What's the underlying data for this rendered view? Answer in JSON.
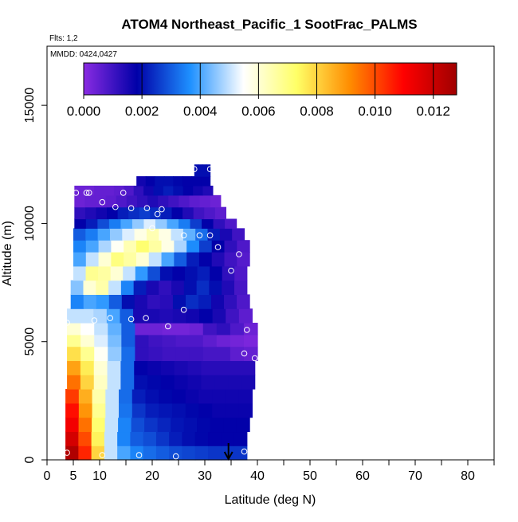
{
  "chart_data": {
    "type": "heatmap",
    "title": "ATOM4 Northeast_Pacific_1 SootFrac_PALMS",
    "annotations": {
      "flights": "Flts: 1,2",
      "dates": "MMDD: 0424,0427"
    },
    "xlabel": "Latitude (deg N)",
    "ylabel": "Altitude (m)",
    "xlim": [
      0,
      85
    ],
    "ylim": [
      0,
      17500
    ],
    "xticks": [
      0,
      5,
      10,
      20,
      30,
      40,
      50,
      60,
      70,
      80
    ],
    "xtick_labels": [
      "0",
      "5",
      "10",
      "20",
      "30",
      "40",
      "50",
      "60",
      "70",
      "80"
    ],
    "xminor_ticks": [
      15,
      25,
      35,
      45,
      55,
      65,
      75,
      85
    ],
    "yticks": [
      0,
      5000,
      10000,
      15000
    ],
    "ytick_labels": [
      "0",
      "5000",
      "10000",
      "15000"
    ],
    "colorbar": {
      "range": [
        0,
        0.0128
      ],
      "ticks": [
        0.0,
        0.002,
        0.004,
        0.006,
        0.008,
        0.01,
        0.012
      ],
      "tick_labels": [
        "0.000",
        "0.002",
        "0.004",
        "0.006",
        "0.008",
        "0.010",
        "0.012"
      ],
      "colors": [
        "#8a2be2",
        "#0000a8",
        "#1e90ff",
        "#ffffff",
        "#ffff66",
        "#ff8c00",
        "#ff0000",
        "#a00000"
      ]
    },
    "marker": {
      "latitude": 34.5,
      "label": "current position arrow"
    },
    "curtain": [
      {
        "alt": [
          0,
          600
        ],
        "lat": [
          3.5,
          38
        ],
        "v": [
          0.0125,
          0.0105,
          0.008,
          0.005,
          0.004,
          0.0035,
          0.0032,
          0.003,
          0.0028,
          0.0027,
          0.0026,
          0.0025,
          0.0025,
          0.0025
        ]
      },
      {
        "alt": [
          600,
          1200
        ],
        "lat": [
          3.5,
          38
        ],
        "v": [
          0.0118,
          0.01,
          0.0075,
          0.005,
          0.0035,
          0.003,
          0.0028,
          0.0025,
          0.0022,
          0.002,
          0.0019,
          0.0018,
          0.0018,
          0.0018
        ]
      },
      {
        "alt": [
          1200,
          1800
        ],
        "lat": [
          3.5,
          38.5
        ],
        "v": [
          0.0112,
          0.0095,
          0.0072,
          0.005,
          0.0035,
          0.0028,
          0.0025,
          0.0023,
          0.0021,
          0.002,
          0.0019,
          0.0018,
          0.0018,
          0.0018
        ]
      },
      {
        "alt": [
          1800,
          2400
        ],
        "lat": [
          3.5,
          39
        ],
        "v": [
          0.0108,
          0.009,
          0.0068,
          0.005,
          0.0033,
          0.0025,
          0.0022,
          0.0021,
          0.002,
          0.0019,
          0.0018,
          0.0017,
          0.0017,
          0.0017
        ]
      },
      {
        "alt": [
          2400,
          3000
        ],
        "lat": [
          3.5,
          39
        ],
        "v": [
          0.0102,
          0.0086,
          0.0065,
          0.005,
          0.0032,
          0.0022,
          0.002,
          0.0019,
          0.0018,
          0.0017,
          0.0016,
          0.0016,
          0.0016,
          0.0016
        ]
      },
      {
        "alt": [
          3000,
          3600
        ],
        "lat": [
          3.8,
          39.5
        ],
        "v": [
          0.0095,
          0.008,
          0.0062,
          0.005,
          0.0032,
          0.002,
          0.0019,
          0.0018,
          0.0017,
          0.0016,
          0.0015,
          0.0015,
          0.0015,
          0.0015
        ]
      },
      {
        "alt": [
          3600,
          4200
        ],
        "lat": [
          3.8,
          39.5
        ],
        "v": [
          0.0088,
          0.0076,
          0.006,
          0.005,
          0.0032,
          0.0018,
          0.0017,
          0.0016,
          0.0015,
          0.0014,
          0.0013,
          0.0013,
          0.0013,
          0.0013
        ]
      },
      {
        "alt": [
          4200,
          4800
        ],
        "lat": [
          3.8,
          40
        ],
        "v": [
          0.0078,
          0.0068,
          0.0056,
          0.0046,
          0.0032,
          0.0012,
          0.0011,
          0.001,
          0.001,
          0.001,
          0.0009,
          0.0009,
          0.0006,
          0.0005
        ]
      },
      {
        "alt": [
          4800,
          5300
        ],
        "lat": [
          3.8,
          40
        ],
        "v": [
          0.0068,
          0.006,
          0.0052,
          0.0044,
          0.003,
          0.0012,
          0.001,
          0.0009,
          0.0008,
          0.0008,
          0.0006,
          0.0004,
          0.0003,
          0.0002
        ]
      },
      {
        "alt": [
          5300,
          5800
        ],
        "lat": [
          3.8,
          40
        ],
        "v": [
          0.006,
          0.0055,
          0.005,
          0.0042,
          0.003,
          0.0004,
          0.0004,
          0.0003,
          0.0003,
          0.0004,
          0.001,
          0.0012,
          0.0008,
          0.0004
        ]
      },
      {
        "alt": [
          5800,
          6400
        ],
        "lat": [
          3.8,
          39
        ],
        "v": [
          0.005,
          0.005,
          0.0048,
          0.004,
          0.003,
          0.0015,
          0.0015,
          0.0014,
          0.0015,
          0.0016,
          0.0018,
          0.0015,
          0.001,
          0.0006
        ]
      },
      {
        "alt": [
          6400,
          7000
        ],
        "lat": [
          4.5,
          38.5
        ],
        "v": [
          0.0035,
          0.004,
          0.0038,
          0.003,
          0.002,
          0.0015,
          0.0012,
          0.0013,
          0.002,
          0.0024,
          0.0022,
          0.0016,
          0.0012,
          0.0008
        ]
      },
      {
        "alt": [
          7000,
          7600
        ],
        "lat": [
          4.5,
          38
        ],
        "v": [
          0.0045,
          0.006,
          0.0065,
          0.005,
          0.0035,
          0.0022,
          0.0015,
          0.0012,
          0.0015,
          0.002,
          0.0024,
          0.002,
          0.0014,
          0.0009
        ]
      },
      {
        "alt": [
          7600,
          8200
        ],
        "lat": [
          5,
          38
        ],
        "v": [
          0.005,
          0.0068,
          0.0066,
          0.006,
          0.005,
          0.0038,
          0.0028,
          0.002,
          0.0018,
          0.002,
          0.0022,
          0.0018,
          0.0012,
          0.0008
        ]
      },
      {
        "alt": [
          8200,
          8800
        ],
        "lat": [
          5,
          38.5
        ],
        "v": [
          0.004,
          0.005,
          0.006,
          0.007,
          0.0066,
          0.006,
          0.005,
          0.004,
          0.003,
          0.0022,
          0.0018,
          0.0014,
          0.001,
          0.0007
        ]
      },
      {
        "alt": [
          8800,
          9300
        ],
        "lat": [
          5,
          38.5
        ],
        "v": [
          0.0035,
          0.004,
          0.0048,
          0.0056,
          0.0064,
          0.0072,
          0.0066,
          0.0058,
          0.0048,
          0.0036,
          0.0026,
          0.0018,
          0.0012,
          0.0008
        ]
      },
      {
        "alt": [
          9300,
          9800
        ],
        "lat": [
          5,
          37.5
        ],
        "v": [
          0.003,
          0.0034,
          0.004,
          0.0046,
          0.0052,
          0.0058,
          0.0064,
          0.0058,
          0.005,
          0.0042,
          0.0032,
          0.0022,
          0.0015,
          0.001
        ]
      },
      {
        "alt": [
          9800,
          10200
        ],
        "lat": [
          5.2,
          36
        ],
        "v": [
          0.0018,
          0.0022,
          0.0028,
          0.0034,
          0.004,
          0.0046,
          0.0052,
          0.0046,
          0.004,
          0.0034,
          0.0026,
          0.0018,
          0.0012,
          0.0008
        ]
      },
      {
        "alt": [
          10200,
          10700
        ],
        "lat": [
          5.2,
          34
        ],
        "v": [
          0.0012,
          0.0014,
          0.0016,
          0.0018,
          0.0022,
          0.0024,
          0.0026,
          0.0024,
          0.0022,
          0.0018,
          0.0014,
          0.001,
          0.0008,
          0.0006
        ]
      },
      {
        "alt": [
          10700,
          11200
        ],
        "lat": [
          5.2,
          33
        ],
        "v": [
          0.0004,
          0.0005,
          0.0005,
          0.0006,
          0.0008,
          0.001,
          0.0012,
          0.0014,
          0.0012,
          0.001,
          0.0008,
          0.0006,
          0.0005,
          0.0004
        ]
      },
      {
        "alt": [
          11200,
          11600
        ],
        "lat": [
          5.2,
          31.5
        ],
        "v": [
          0.0004,
          0.0004,
          0.0005,
          0.0005,
          0.0006,
          0.0008,
          0.0012,
          0.0016,
          0.002,
          0.0022,
          0.002,
          0.0018,
          0.0016,
          0.0014
        ]
      },
      {
        "alt": [
          11600,
          12000
        ],
        "lat": [
          17,
          31
        ],
        "v": [
          0.0016,
          0.0018,
          0.002,
          0.002,
          0.0019,
          0.0018,
          0.0018,
          0.0018
        ]
      },
      {
        "alt": [
          12000,
          12500
        ],
        "lat": [
          28,
          31
        ],
        "v": [
          0.002,
          0.002,
          0.002,
          0.002
        ]
      }
    ],
    "sample_points": [
      {
        "lat": 3.8,
        "alt": 300
      },
      {
        "lat": 10.5,
        "alt": 200
      },
      {
        "lat": 17.5,
        "alt": 200
      },
      {
        "lat": 24.5,
        "alt": 150
      },
      {
        "lat": 37.5,
        "alt": 350
      },
      {
        "lat": 3.8,
        "alt": 5800
      },
      {
        "lat": 9,
        "alt": 5900
      },
      {
        "lat": 12,
        "alt": 6000
      },
      {
        "lat": 16,
        "alt": 5950
      },
      {
        "lat": 18.8,
        "alt": 6000
      },
      {
        "lat": 23,
        "alt": 5650
      },
      {
        "lat": 26,
        "alt": 6350
      },
      {
        "lat": 37.5,
        "alt": 4500
      },
      {
        "lat": 38,
        "alt": 5500
      },
      {
        "lat": 39.5,
        "alt": 4300
      },
      {
        "lat": 35,
        "alt": 8000
      },
      {
        "lat": 36.5,
        "alt": 8700
      },
      {
        "lat": 32.5,
        "alt": 9000
      },
      {
        "lat": 26,
        "alt": 9500
      },
      {
        "lat": 29,
        "alt": 9500
      },
      {
        "lat": 31,
        "alt": 9500
      },
      {
        "lat": 20,
        "alt": 9800
      },
      {
        "lat": 21,
        "alt": 10400
      },
      {
        "lat": 21.8,
        "alt": 10600
      },
      {
        "lat": 19,
        "alt": 10650
      },
      {
        "lat": 16,
        "alt": 10650
      },
      {
        "lat": 13,
        "alt": 10700
      },
      {
        "lat": 10.5,
        "alt": 10900
      },
      {
        "lat": 14.5,
        "alt": 11300
      },
      {
        "lat": 8,
        "alt": 11300
      },
      {
        "lat": 5.5,
        "alt": 11300
      },
      {
        "lat": 7.5,
        "alt": 11300
      },
      {
        "lat": 28,
        "alt": 12300
      },
      {
        "lat": 31,
        "alt": 12300
      }
    ]
  }
}
